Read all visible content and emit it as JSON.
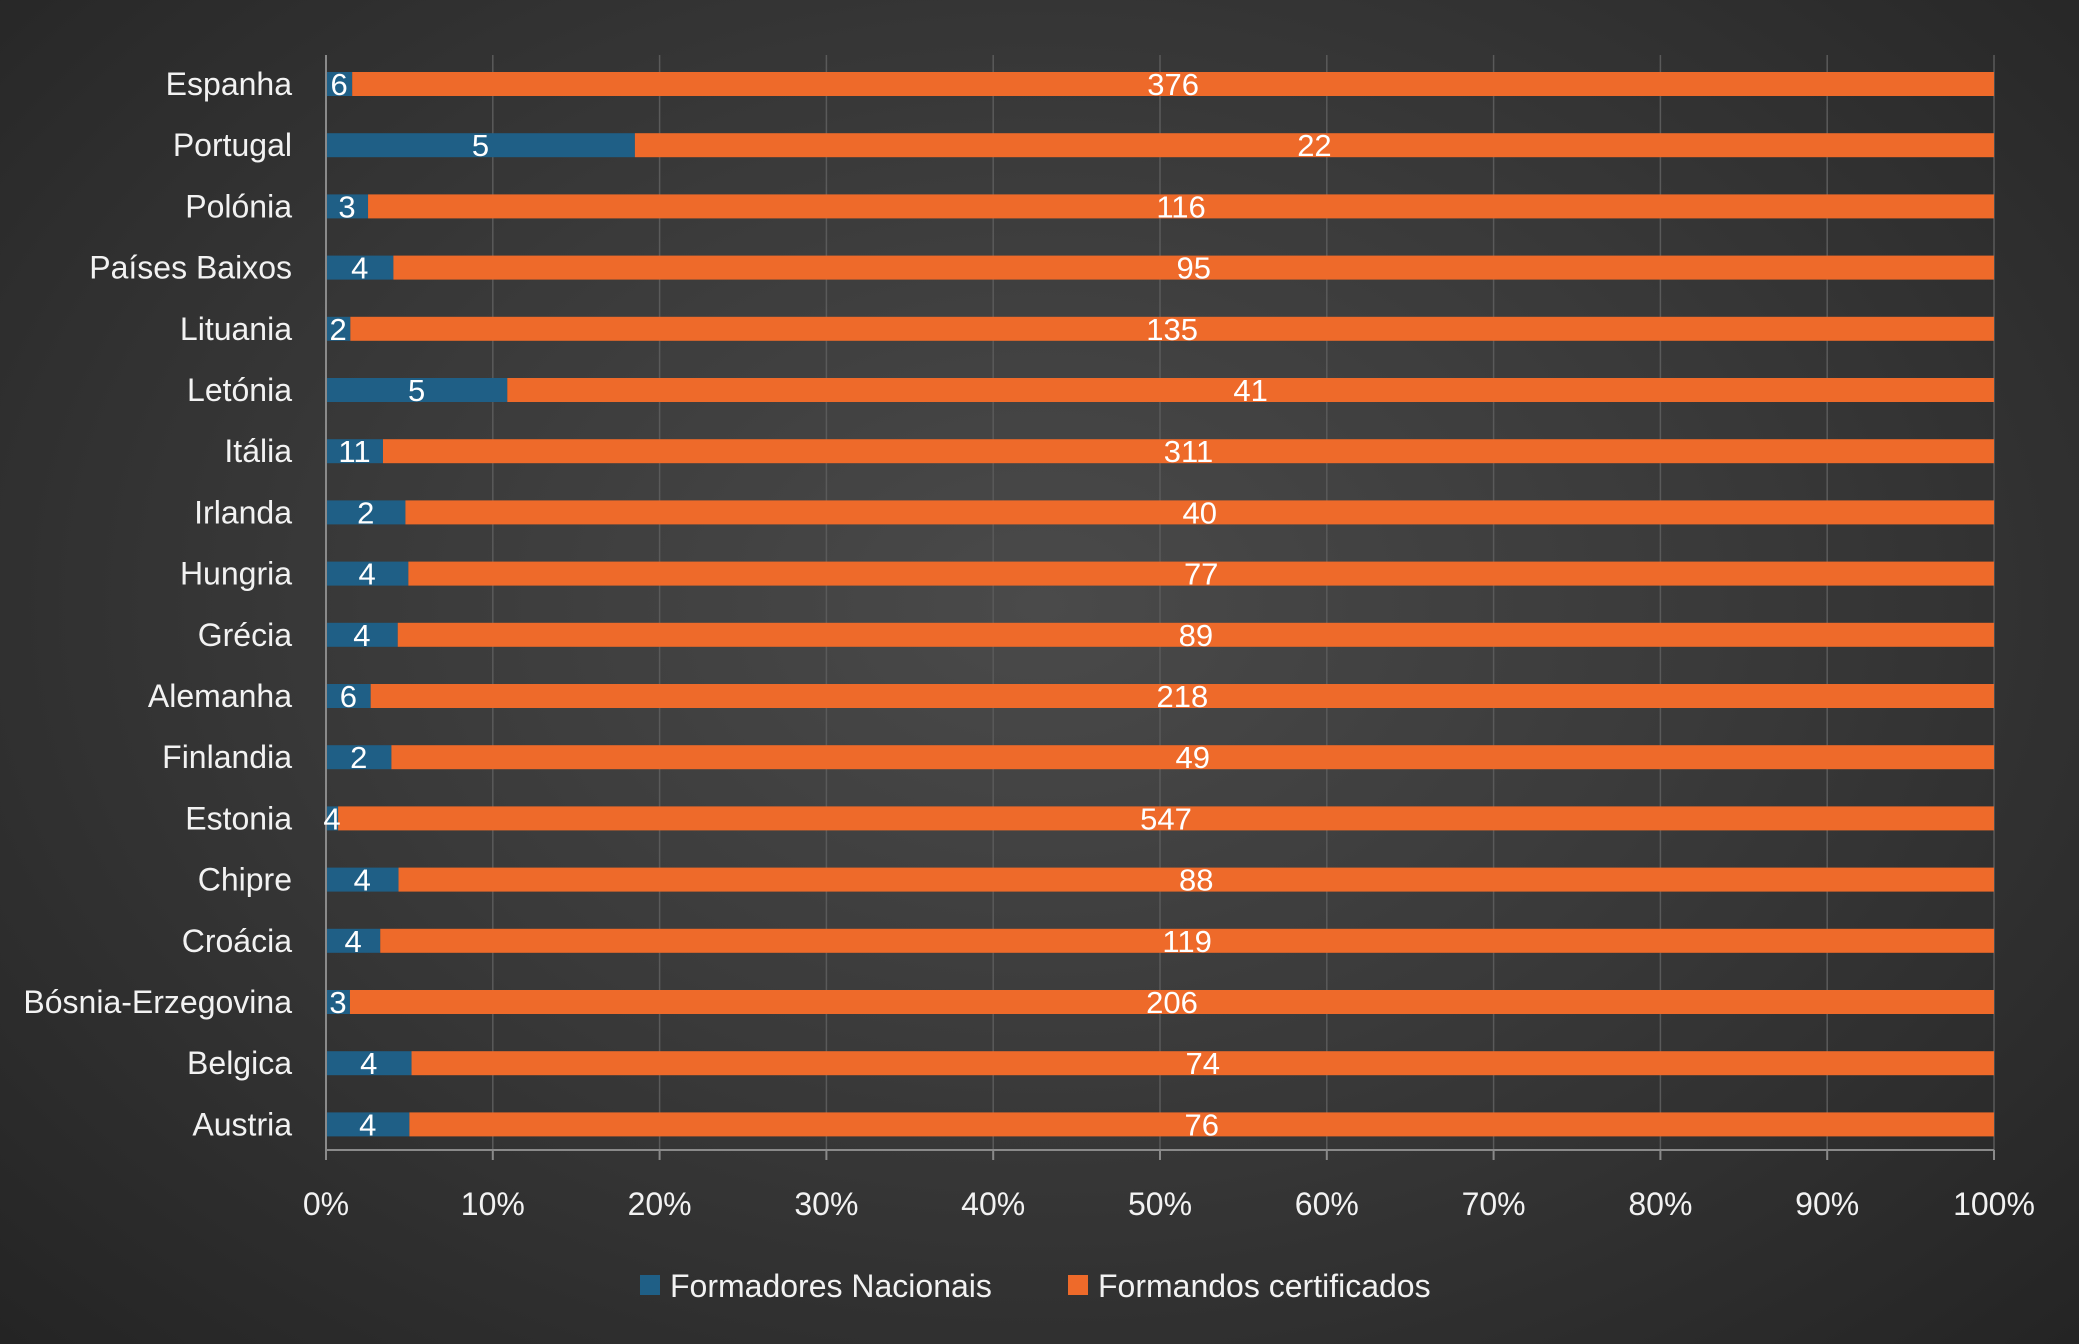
{
  "chart_data": {
    "type": "bar",
    "orientation": "horizontal",
    "stacking": "percent",
    "categories": [
      "Espanha",
      "Portugal",
      "Polónia",
      "Países Baixos",
      "Lituania",
      "Letónia",
      "Itália",
      "Irlanda",
      "Hungria",
      "Grécia",
      "Alemanha",
      "Finlandia",
      "Estonia",
      "Chipre",
      "Croácia",
      "Bósnia-Erzegovina",
      "Belgica",
      "Austria"
    ],
    "series": [
      {
        "name": "Formadores Nacionais",
        "color": "#1f5f86",
        "values": [
          6,
          5,
          3,
          4,
          2,
          5,
          11,
          2,
          4,
          4,
          6,
          2,
          4,
          4,
          4,
          3,
          4,
          4
        ]
      },
      {
        "name": "Formandos certificados",
        "color": "#ee6a2a",
        "values": [
          376,
          22,
          116,
          95,
          135,
          41,
          311,
          40,
          77,
          89,
          218,
          49,
          547,
          88,
          119,
          206,
          74,
          76
        ]
      }
    ],
    "xlim": [
      0,
      100
    ],
    "x_ticks": [
      "0%",
      "10%",
      "20%",
      "30%",
      "40%",
      "50%",
      "60%",
      "70%",
      "80%",
      "90%",
      "100%"
    ],
    "grid": "vertical",
    "legend": "bottom",
    "data_labels": true
  }
}
